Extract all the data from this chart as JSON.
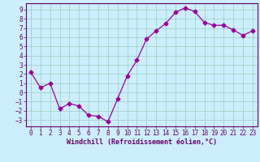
{
  "x": [
    0,
    1,
    2,
    3,
    4,
    5,
    6,
    7,
    8,
    9,
    10,
    11,
    12,
    13,
    14,
    15,
    16,
    17,
    18,
    19,
    20,
    21,
    22,
    23
  ],
  "y": [
    2.2,
    0.5,
    1.0,
    -1.8,
    -1.2,
    -1.5,
    -2.5,
    -2.6,
    -3.2,
    -0.7,
    1.8,
    3.5,
    5.8,
    6.7,
    7.5,
    8.7,
    9.2,
    8.8,
    7.6,
    7.3,
    7.3,
    6.8,
    6.2,
    6.7
  ],
  "line_color": "#990099",
  "marker": "D",
  "markersize": 2.5,
  "linewidth": 0.9,
  "bg_color": "#cceeff",
  "grid_color": "#99ccbb",
  "axis_color": "#660066",
  "xlabel": "Windchill (Refroidissement éolien,°C)",
  "xlim": [
    -0.5,
    23.5
  ],
  "ylim": [
    -3.7,
    9.7
  ],
  "yticks": [
    -3,
    -2,
    -1,
    0,
    1,
    2,
    3,
    4,
    5,
    6,
    7,
    8,
    9
  ],
  "xticks": [
    0,
    1,
    2,
    3,
    4,
    5,
    6,
    7,
    8,
    9,
    10,
    11,
    12,
    13,
    14,
    15,
    16,
    17,
    18,
    19,
    20,
    21,
    22,
    23
  ],
  "tick_fontsize": 5.5,
  "label_fontsize": 6.0
}
